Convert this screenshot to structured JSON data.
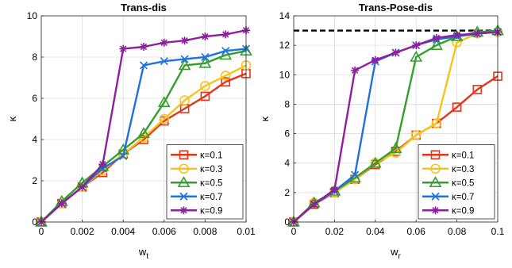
{
  "chart_data": [
    {
      "type": "line",
      "title": "Trans-dis",
      "xlabel": "w",
      "xlabel_sub": "t",
      "ylabel": "κ",
      "xlim": [
        0,
        0.01
      ],
      "ylim": [
        0,
        10
      ],
      "xticks": [
        0,
        0.002,
        0.004,
        0.006,
        0.008,
        0.01
      ],
      "xtick_labels": [
        "0",
        "0.002",
        "0.004",
        "0.006",
        "0.008",
        "0.01"
      ],
      "yticks": [
        0,
        2,
        4,
        6,
        8,
        10
      ],
      "ytick_labels": [
        "0",
        "2",
        "4",
        "6",
        "8",
        "10"
      ],
      "grid": true,
      "legend_position": "lower-right",
      "x": [
        0,
        0.001,
        0.002,
        0.003,
        0.004,
        0.005,
        0.006,
        0.007,
        0.008,
        0.009,
        0.01
      ],
      "series": [
        {
          "name": "κ=0.1",
          "color": "#e8331a",
          "marker": "square",
          "values": [
            0,
            0.9,
            1.7,
            2.4,
            3.3,
            4.0,
            4.9,
            5.5,
            6.1,
            6.8,
            7.2
          ]
        },
        {
          "name": "κ=0.3",
          "color": "#f7c41a",
          "marker": "circle",
          "values": [
            0,
            0.9,
            1.7,
            2.5,
            3.3,
            4.1,
            5.0,
            5.9,
            6.6,
            7.1,
            7.6
          ]
        },
        {
          "name": "κ=0.5",
          "color": "#33a02c",
          "marker": "triangle",
          "values": [
            0,
            1.0,
            1.9,
            2.7,
            3.5,
            4.3,
            5.8,
            7.6,
            7.7,
            8.1,
            8.3
          ]
        },
        {
          "name": "κ=0.7",
          "color": "#1f70e0",
          "marker": "x",
          "values": [
            0,
            0.9,
            1.7,
            2.6,
            3.2,
            7.6,
            7.8,
            7.9,
            8.0,
            8.3,
            8.4
          ]
        },
        {
          "name": "κ=0.9",
          "color": "#8e1f9e",
          "marker": "star",
          "values": [
            0,
            0.9,
            1.7,
            2.8,
            8.4,
            8.5,
            8.7,
            8.8,
            9.0,
            9.1,
            9.3
          ]
        }
      ]
    },
    {
      "type": "line",
      "title": "Trans-Pose-dis",
      "xlabel": "w",
      "xlabel_sub": "r",
      "ylabel": "κ",
      "xlim": [
        0,
        0.1
      ],
      "ylim": [
        0,
        14
      ],
      "xticks": [
        0,
        0.02,
        0.04,
        0.06,
        0.08,
        0.1
      ],
      "xtick_labels": [
        "0",
        "0.02",
        "0.04",
        "0.06",
        "0.08",
        "0.1"
      ],
      "yticks": [
        0,
        2,
        4,
        6,
        8,
        10,
        12,
        14
      ],
      "ytick_labels": [
        "0",
        "2",
        "4",
        "6",
        "8",
        "10",
        "12",
        "14"
      ],
      "grid": true,
      "legend_position": "lower-right",
      "reference_line": {
        "y": 13,
        "style": "dashed",
        "color": "#000000"
      },
      "x": [
        0,
        0.01,
        0.02,
        0.03,
        0.04,
        0.05,
        0.06,
        0.07,
        0.08,
        0.09,
        0.1
      ],
      "series": [
        {
          "name": "κ=0.1",
          "color": "#e8331a",
          "marker": "square",
          "values": [
            0,
            1.2,
            2.0,
            2.9,
            3.9,
            4.8,
            5.9,
            6.7,
            7.8,
            9.0,
            9.9
          ]
        },
        {
          "name": "κ=0.3",
          "color": "#f7c41a",
          "marker": "circle",
          "values": [
            0,
            1.3,
            2.0,
            2.9,
            4.0,
            4.7,
            5.9,
            6.7,
            12.2,
            12.8,
            12.9
          ]
        },
        {
          "name": "κ=0.5",
          "color": "#33a02c",
          "marker": "triangle",
          "values": [
            0,
            1.3,
            2.1,
            3.0,
            4.0,
            5.0,
            11.2,
            12.0,
            12.6,
            12.9,
            13.0
          ]
        },
        {
          "name": "κ=0.7",
          "color": "#1f70e0",
          "marker": "x",
          "values": [
            0,
            1.2,
            2.1,
            3.2,
            10.9,
            11.5,
            12.0,
            12.4,
            12.6,
            12.8,
            12.9
          ]
        },
        {
          "name": "κ=0.9",
          "color": "#8e1f9e",
          "marker": "star",
          "values": [
            0,
            1.2,
            2.2,
            10.3,
            11.0,
            11.5,
            12.0,
            12.5,
            12.7,
            12.8,
            12.9
          ]
        }
      ]
    }
  ]
}
